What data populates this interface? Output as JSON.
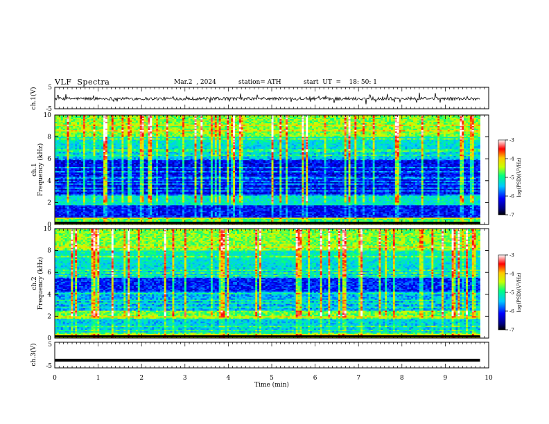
{
  "header": {
    "title": "VLF  Spectra",
    "date": "Mar.2  , 2024",
    "station": "station= ATH",
    "start_ut": "start  UT  =    18: 50: 1"
  },
  "chart_data": [
    {
      "type": "line",
      "name": "ch1-waveform",
      "ylabel": "ch.1(V)",
      "ylim": [
        -5,
        5
      ],
      "yticks": [
        "5",
        "-5"
      ],
      "xlim": [
        0,
        10
      ]
    },
    {
      "type": "heatmap",
      "name": "ch1-spectrogram",
      "ylabel": "ch.1\nFrequency  (kHz)",
      "ylabel_line1": "ch.1",
      "ylabel_line2": "Frequency  (kHz)",
      "ylim": [
        0,
        10
      ],
      "yticks": [
        "0",
        "2",
        "4",
        "6",
        "8",
        "10"
      ],
      "xlim": [
        0,
        10
      ],
      "colorbar": {
        "label": "log(PSD)(V²/Hz)",
        "range": [
          -7,
          -3
        ],
        "ticks": [
          "-3",
          "-4",
          "-5",
          "-6",
          "-7"
        ]
      }
    },
    {
      "type": "heatmap",
      "name": "ch2-spectrogram",
      "ylabel": "ch.2\nFrequency  (kHz)",
      "ylabel_line1": "ch.2",
      "ylabel_line2": "Frequency  (kHz)",
      "ylim": [
        0,
        10
      ],
      "yticks": [
        "0",
        "2",
        "4",
        "6",
        "8",
        "10"
      ],
      "xlim": [
        0,
        10
      ],
      "colorbar": {
        "label": "log(PSD)(V²/Hz)",
        "range": [
          -7,
          -3
        ],
        "ticks": [
          "-3",
          "-4",
          "-5",
          "-6",
          "-7"
        ]
      }
    },
    {
      "type": "line",
      "name": "ch3-waveform",
      "ylabel": "ch.3(V)",
      "ylim": [
        -5,
        5
      ],
      "yticks": [
        "5",
        "-5"
      ],
      "xlim": [
        0,
        10
      ],
      "level": -2
    }
  ],
  "time_axis": {
    "xlabel": "Time  (min)",
    "ticks": [
      "0",
      "1",
      "2",
      "3",
      "4",
      "5",
      "6",
      "7",
      "8",
      "9",
      "10"
    ],
    "data_end": 9.8
  },
  "colors": {
    "axis": "#000000",
    "colormap": [
      "#000000",
      "#00007f",
      "#0000ff",
      "#00c8ff",
      "#00ff80",
      "#c8ff00",
      "#ffc800",
      "#ff0000",
      "#ffffff"
    ]
  }
}
